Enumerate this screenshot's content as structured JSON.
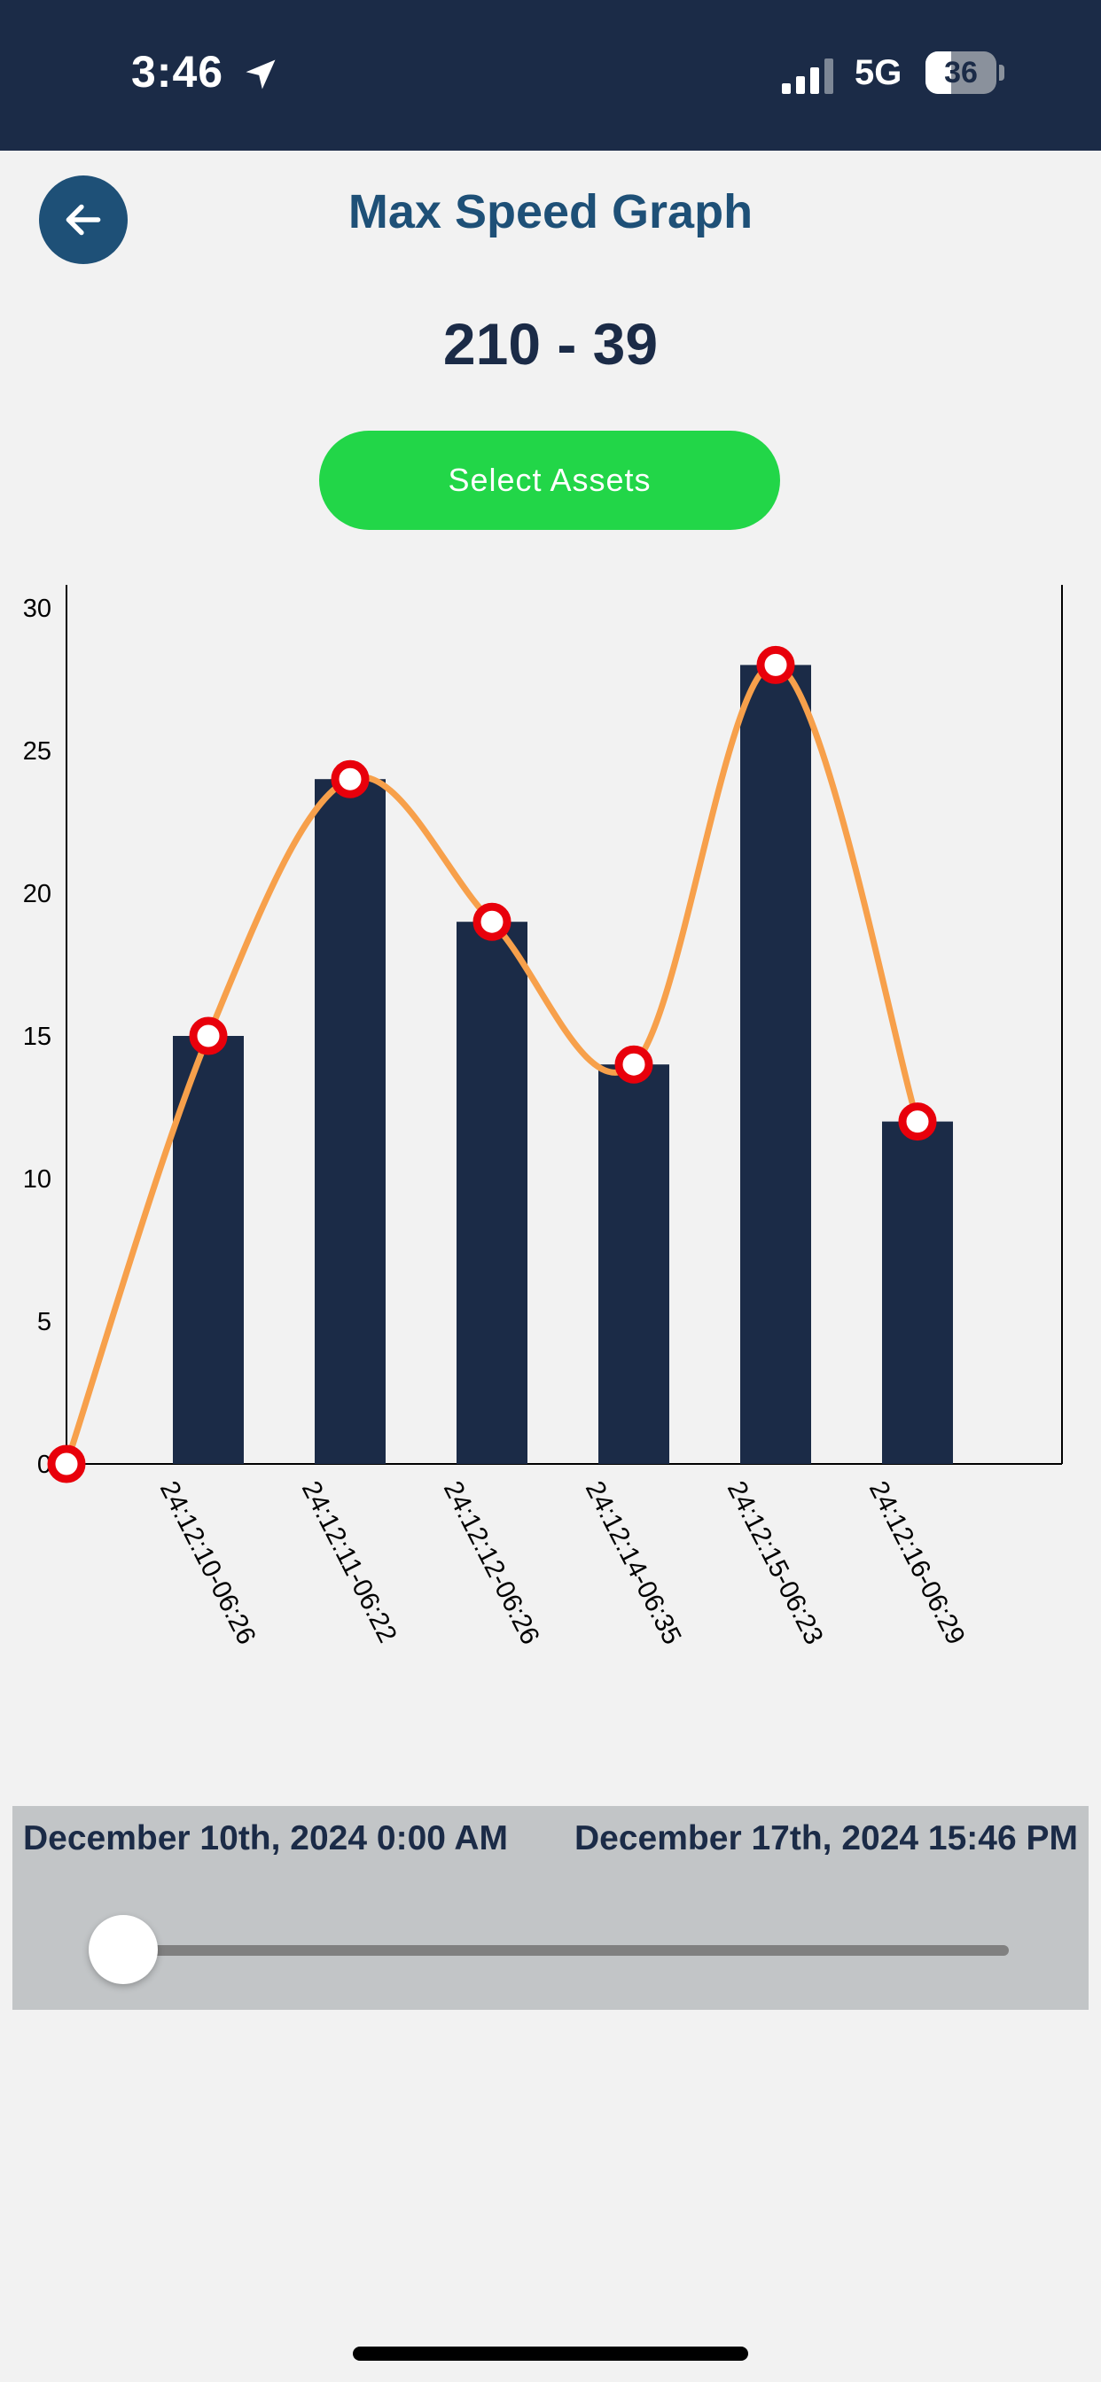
{
  "status_bar": {
    "time": "3:46",
    "network": "5G",
    "battery_level": "36",
    "battery_fraction": 0.36,
    "icons": [
      "location-arrow-icon",
      "signal-bars-icon",
      "battery-icon"
    ]
  },
  "header": {
    "back_icon": "arrow-left-icon",
    "title": "Max Speed Graph"
  },
  "asset_range": "210 - 39",
  "select_assets_label": "Select Assets",
  "colors": {
    "header_bg": "#1b2b47",
    "title": "#1e5077",
    "button": "#22d648",
    "bar": "#1b2b47",
    "line": "#f7a04b",
    "point": "#e8000b"
  },
  "chart_data": {
    "type": "bar",
    "categories": [
      "24:12:10-06:26",
      "24:12:11-06:22",
      "24:12:12-06:26",
      "24:12:14-06:35",
      "24:12:15-06:23",
      "24:12:16-06:29"
    ],
    "values": [
      15,
      24,
      19,
      14,
      28,
      12
    ],
    "line_overlay": {
      "type": "line",
      "smooth": true,
      "x": [
        "",
        "24:12:10-06:26",
        "24:12:11-06:22",
        "24:12:12-06:26",
        "24:12:14-06:35",
        "24:12:15-06:23",
        "24:12:16-06:29"
      ],
      "values": [
        0,
        15,
        24,
        19,
        14,
        28,
        12
      ]
    },
    "y_ticks": [
      0,
      5,
      10,
      15,
      20,
      25,
      30
    ],
    "ylim": [
      0,
      30
    ],
    "title": "",
    "xlabel": "",
    "ylabel": "",
    "grid": false,
    "legend": "none"
  },
  "date_range": {
    "start": "December 10th, 2024 0:00 AM",
    "end": "December 17th, 2024 15:46 PM",
    "slider_fraction": 0.0
  }
}
